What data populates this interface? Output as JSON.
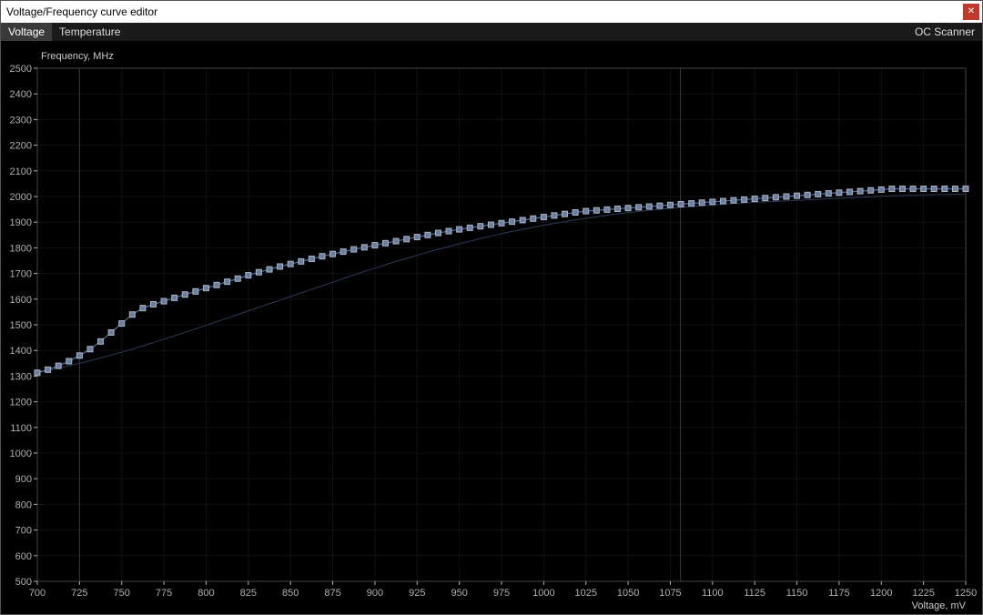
{
  "window": {
    "title": "Voltage/Frequency curve editor"
  },
  "tabs": {
    "voltage": "Voltage",
    "temperature": "Temperature",
    "oc_scanner": "OC Scanner",
    "active": "voltage"
  },
  "chart": {
    "type": "line-with-markers",
    "y_axis": {
      "label": "Frequency, MHz",
      "min": 500,
      "max": 2500,
      "step": 100,
      "tick_color": "#b0b0b0",
      "label_color": "#cccccc",
      "fontsize": 11
    },
    "x_axis": {
      "label": "Voltage, mV",
      "min": 700,
      "max": 1250,
      "step": 25,
      "tick_color": "#b0b0b0",
      "label_color": "#cccccc",
      "fontsize": 11
    },
    "background_color": "#000000",
    "plot_border_color": "#444444",
    "grid_color": "#111111",
    "vline_color": "#2b3b55",
    "curve": {
      "line_color": "#5a7095",
      "line_width": 1.2,
      "marker": "square",
      "marker_size": 6,
      "marker_fill": "#6a7e9e",
      "marker_border": "#a8b4c8",
      "x_step_mV": 6.25,
      "points_y_MHz": [
        1313,
        1325,
        1340,
        1358,
        1380,
        1405,
        1435,
        1470,
        1505,
        1540,
        1565,
        1580,
        1592,
        1605,
        1618,
        1630,
        1643,
        1655,
        1668,
        1680,
        1693,
        1705,
        1716,
        1727,
        1737,
        1747,
        1757,
        1767,
        1776,
        1785,
        1794,
        1802,
        1810,
        1818,
        1826,
        1834,
        1842,
        1850,
        1858,
        1865,
        1872,
        1878,
        1884,
        1890,
        1896,
        1902,
        1908,
        1914,
        1920,
        1926,
        1932,
        1938,
        1943,
        1946,
        1949,
        1952,
        1955,
        1958,
        1961,
        1964,
        1967,
        1970,
        1973,
        1976,
        1979,
        1982,
        1985,
        1988,
        1991,
        1994,
        1997,
        2000,
        2003,
        2006,
        2009,
        2012,
        2015,
        2018,
        2021,
        2024,
        2027,
        2030,
        2030,
        2030,
        2030,
        2030,
        2030,
        2030,
        2030
      ]
    },
    "baseline": {
      "line_color": "#2a3a58",
      "line_width": 1,
      "points_y_MHz": [
        1313,
        1322,
        1331,
        1340,
        1350,
        1360,
        1371,
        1382,
        1393,
        1405,
        1418,
        1431,
        1444,
        1457,
        1470,
        1484,
        1498,
        1512,
        1526,
        1540,
        1554,
        1568,
        1582,
        1596,
        1610,
        1624,
        1638,
        1652,
        1666,
        1680,
        1694,
        1708,
        1721,
        1734,
        1747,
        1759,
        1771,
        1783,
        1794,
        1805,
        1816,
        1826,
        1836,
        1846,
        1855,
        1864,
        1872,
        1880,
        1888,
        1895,
        1902,
        1909,
        1915,
        1921,
        1927,
        1932,
        1937,
        1942,
        1946,
        1950,
        1954,
        1958,
        1961,
        1964,
        1967,
        1970,
        1973,
        1975,
        1977,
        1979,
        1981,
        1983,
        1985,
        1987,
        1989,
        1991,
        1993,
        1995,
        1997,
        1999,
        2001,
        2003,
        2004,
        2005,
        2006,
        2007,
        2008,
        2009,
        2010
      ]
    }
  }
}
